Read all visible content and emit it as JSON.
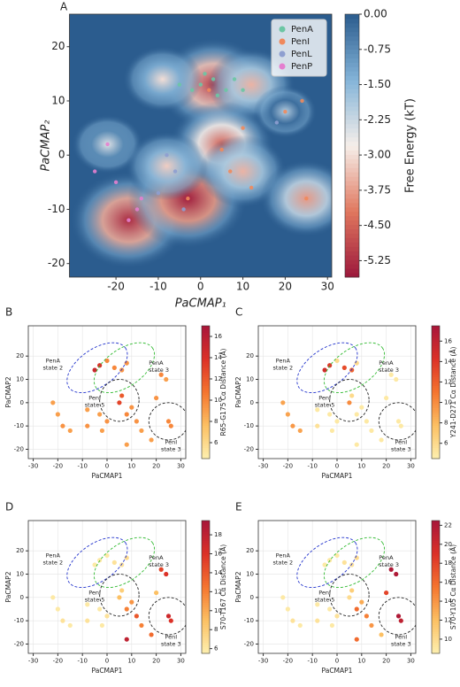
{
  "chart_data": [
    {
      "type": "contour",
      "panel": "A",
      "xlabel": "PaCMAP₁",
      "ylabel": "PaCMAP₂",
      "xlim": [
        -31,
        31
      ],
      "ylim": [
        -22.5,
        26
      ],
      "xticks": [
        -20,
        -10,
        0,
        10,
        20,
        30
      ],
      "yticks": [
        -20,
        -10,
        0,
        10,
        20
      ],
      "colorbar_label": "Free Energy (kT)",
      "clim": [
        -5.6,
        0
      ],
      "cticks": [
        {
          "value": 0,
          "label": "0.00"
        },
        {
          "value": -0.75,
          "label": "-0.75"
        },
        {
          "value": -1.5,
          "label": "-1.50"
        },
        {
          "value": -2.25,
          "label": "-2.25"
        },
        {
          "value": -3.0,
          "label": "-3.00"
        },
        {
          "value": -3.75,
          "label": "-3.75"
        },
        {
          "value": -4.5,
          "label": "-4.50"
        },
        {
          "value": -5.25,
          "label": "-5.25"
        }
      ],
      "basins": [
        {
          "x": 3,
          "y": 13,
          "energy": -5.0
        },
        {
          "x": -9,
          "y": 14,
          "energy": -3.0
        },
        {
          "x": 12,
          "y": 13,
          "energy": -3.5
        },
        {
          "x": -17,
          "y": -12,
          "energy": -5.3
        },
        {
          "x": -3,
          "y": -8,
          "energy": -5.5
        },
        {
          "x": 5,
          "y": 2,
          "energy": -4.5
        },
        {
          "x": 10,
          "y": -3,
          "energy": -3.5
        },
        {
          "x": 25,
          "y": -8,
          "energy": -3.8
        },
        {
          "x": -22,
          "y": 2,
          "energy": -2.5
        },
        {
          "x": -8,
          "y": -2,
          "energy": -3.2
        },
        {
          "x": 20,
          "y": 8,
          "energy": -2.0
        }
      ],
      "legend": "upper right",
      "series": [
        {
          "name": "PenA",
          "color": "#6cc6a4",
          "x": [
            0,
            3,
            6,
            -2,
            4,
            8,
            1,
            -5,
            10
          ],
          "y": [
            13,
            14,
            12,
            12,
            11,
            14,
            15,
            13,
            12
          ]
        },
        {
          "name": "PenI",
          "color": "#f0895c",
          "x": [
            2,
            5,
            7,
            12,
            25,
            20,
            -3,
            10,
            24
          ],
          "y": [
            12,
            1,
            -3,
            -6,
            -8,
            8,
            -8,
            5,
            10
          ]
        },
        {
          "name": "PenL",
          "color": "#8e9fd0",
          "x": [
            -6,
            -8,
            18,
            -10,
            -4
          ],
          "y": [
            -3,
            0,
            6,
            -7,
            -10
          ]
        },
        {
          "name": "PenP",
          "color": "#e47fcf",
          "x": [
            -17,
            -22,
            -15,
            -20,
            -25,
            -14
          ],
          "y": [
            -12,
            2,
            -10,
            -5,
            -3,
            -8
          ]
        }
      ]
    },
    {
      "type": "scatter",
      "panel": "B",
      "xlabel": "PaCMAP1",
      "ylabel": "PaCMAP2",
      "xlim": [
        -32,
        32
      ],
      "ylim": [
        -24,
        33
      ],
      "xticks": [
        -30,
        -20,
        -10,
        0,
        10,
        20,
        30
      ],
      "yticks": [
        -20,
        -10,
        0,
        10,
        20
      ],
      "grid": true,
      "colorbar_label": "R65-G175 Cα Distance (Å)",
      "clim": [
        4.5,
        17
      ],
      "cticks": [
        6,
        8,
        10,
        12,
        14,
        16
      ],
      "x": [
        -20,
        -22,
        -18,
        -15,
        -8,
        -8,
        -3,
        -2,
        0,
        -5,
        -3,
        0,
        3,
        6,
        8,
        5,
        6,
        8,
        12,
        10,
        22,
        24,
        20,
        25,
        26,
        14,
        8,
        18
      ],
      "y": [
        -5,
        0,
        -10,
        -12,
        -3,
        -10,
        -5,
        -12,
        -8,
        14,
        16,
        18,
        15,
        14,
        17,
        0,
        3,
        -5,
        -8,
        -2,
        12,
        10,
        2,
        -8,
        -10,
        -12,
        -18,
        -16
      ],
      "values": [
        9,
        9,
        9.5,
        9,
        9,
        9.5,
        9,
        9,
        9.5,
        15,
        14,
        10,
        10,
        9.5,
        9.5,
        13,
        12,
        10,
        9.5,
        9.5,
        10,
        9,
        9.5,
        10,
        10,
        9,
        9,
        9
      ],
      "annotations": [
        {
          "lines": [
            "PenA",
            "state 2"
          ]
        },
        {
          "lines": [
            "PenA",
            "state 3"
          ]
        },
        {
          "lines": [
            "PenI",
            "state 5"
          ]
        },
        {
          "lines": [
            "PenI",
            "state 3"
          ]
        }
      ]
    },
    {
      "type": "scatter",
      "panel": "C",
      "xlabel": "PaCMAP1",
      "ylabel": "PaCMAP2",
      "xlim": [
        -32,
        32
      ],
      "ylim": [
        -24,
        33
      ],
      "xticks": [
        -30,
        -20,
        -10,
        0,
        10,
        20,
        30
      ],
      "yticks": [
        -20,
        -10,
        0,
        10,
        20
      ],
      "grid": true,
      "colorbar_label": "Y241-D271 Cα Distance (Å)",
      "clim": [
        4.5,
        17.5
      ],
      "cticks": [
        6,
        8,
        10,
        12,
        14,
        16
      ],
      "x": [
        -20,
        -22,
        -18,
        -15,
        -8,
        -8,
        -3,
        -2,
        0,
        -5,
        -3,
        0,
        3,
        6,
        8,
        5,
        6,
        8,
        12,
        10,
        22,
        24,
        20,
        25,
        26,
        14,
        8,
        18
      ],
      "y": [
        -5,
        0,
        -10,
        -12,
        -3,
        -10,
        -5,
        -12,
        -8,
        14,
        16,
        18,
        15,
        14,
        17,
        0,
        3,
        -5,
        -8,
        -2,
        12,
        10,
        2,
        -8,
        -10,
        -12,
        -18,
        -16
      ],
      "values": [
        9,
        9,
        9.5,
        9,
        5,
        5.5,
        5,
        5,
        5,
        15,
        14,
        6,
        13,
        12,
        6,
        10,
        6,
        5,
        5,
        5,
        5,
        5,
        5,
        5,
        5,
        5,
        5,
        5
      ],
      "annotations": [
        {
          "lines": [
            "PenA",
            "state 2"
          ]
        },
        {
          "lines": [
            "PenA",
            "state 3"
          ]
        },
        {
          "lines": [
            "PenI",
            "state 5"
          ]
        },
        {
          "lines": [
            "PenI",
            "state 3"
          ]
        }
      ]
    },
    {
      "type": "scatter",
      "panel": "D",
      "xlabel": "PaCMAP1",
      "ylabel": "PaCMAP2",
      "xlim": [
        -32,
        32
      ],
      "ylim": [
        -24,
        33
      ],
      "xticks": [
        -30,
        -20,
        -10,
        0,
        10,
        20,
        30
      ],
      "yticks": [
        -20,
        -10,
        0,
        10,
        20
      ],
      "grid": true,
      "colorbar_label": "S70-T167 Cα Distance (Å)",
      "clim": [
        5.5,
        19.5
      ],
      "cticks": [
        6,
        8,
        10,
        12,
        14,
        16,
        18
      ],
      "x": [
        -20,
        -22,
        -18,
        -15,
        -8,
        -8,
        -3,
        -2,
        0,
        -5,
        -3,
        0,
        3,
        6,
        8,
        5,
        6,
        8,
        12,
        10,
        22,
        24,
        20,
        25,
        26,
        14,
        8,
        18
      ],
      "y": [
        -5,
        0,
        -10,
        -12,
        -3,
        -10,
        -5,
        -12,
        -8,
        14,
        16,
        18,
        15,
        14,
        17,
        0,
        3,
        -5,
        -8,
        -2,
        12,
        10,
        2,
        -8,
        -10,
        -12,
        -18,
        -16
      ],
      "values": [
        6,
        6,
        6.5,
        6,
        6,
        6.5,
        6,
        6,
        6.5,
        6,
        6,
        6,
        6.5,
        6.5,
        7,
        9,
        8,
        12,
        14,
        11,
        15,
        16,
        9,
        17,
        16,
        12,
        18,
        13
      ],
      "annotations": [
        {
          "lines": [
            "PenA",
            "state 2"
          ]
        },
        {
          "lines": [
            "PenA",
            "state 3"
          ]
        },
        {
          "lines": [
            "PenI",
            "state 5"
          ]
        },
        {
          "lines": [
            "PenI",
            "state 3"
          ]
        }
      ]
    },
    {
      "type": "scatter",
      "panel": "E",
      "xlabel": "PaCMAP1",
      "ylabel": "PaCMAP2",
      "xlim": [
        -32,
        32
      ],
      "ylim": [
        -24,
        33
      ],
      "xticks": [
        -30,
        -20,
        -10,
        0,
        10,
        20,
        30
      ],
      "yticks": [
        -20,
        -10,
        0,
        10,
        20
      ],
      "grid": true,
      "colorbar_label": "S70-Y105 Cα Distance (Å)",
      "clim": [
        8.5,
        22.5
      ],
      "cticks": [
        10,
        12,
        14,
        16,
        18,
        20,
        22
      ],
      "x": [
        -20,
        -22,
        -18,
        -15,
        -8,
        -8,
        -3,
        -2,
        0,
        -5,
        -3,
        0,
        3,
        6,
        8,
        5,
        6,
        8,
        12,
        10,
        22,
        24,
        20,
        25,
        26,
        14,
        8,
        18
      ],
      "y": [
        -5,
        0,
        -10,
        -12,
        -3,
        -10,
        -5,
        -12,
        -8,
        14,
        16,
        18,
        15,
        14,
        17,
        0,
        3,
        -5,
        -8,
        -2,
        12,
        10,
        2,
        -8,
        -10,
        -12,
        -18,
        -16
      ],
      "values": [
        9,
        9,
        9.5,
        9,
        9,
        9.5,
        9,
        9,
        9.5,
        9,
        9,
        9,
        9.5,
        9.5,
        10,
        10,
        11,
        16,
        15,
        13,
        22,
        22,
        18,
        22,
        21,
        14,
        16,
        12
      ],
      "annotations": [
        {
          "lines": [
            "PenA",
            "state 2"
          ]
        },
        {
          "lines": [
            "PenA",
            "state 3"
          ]
        },
        {
          "lines": [
            "PenI",
            "state 5"
          ]
        },
        {
          "lines": [
            "PenI",
            "state 3"
          ]
        }
      ]
    }
  ]
}
